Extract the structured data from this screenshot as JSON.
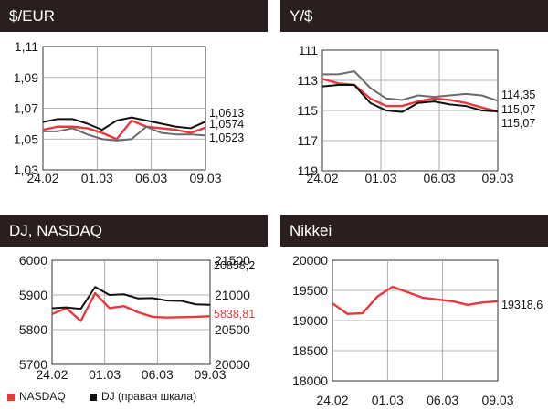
{
  "colors": {
    "red": "#e8383d",
    "black": "#111111",
    "gray": "#6b6b6b",
    "header_bg": "#2a1e1e"
  },
  "chart_data": [
    {
      "title": "$/EUR",
      "type": "line",
      "x_ticks": [
        "24.02",
        "01.03",
        "06.03",
        "09.03"
      ],
      "y_ticks": [
        "1,11",
        "1,09",
        "1,07",
        "1,05",
        "1,03"
      ],
      "ylim": [
        1.03,
        1.11
      ],
      "grid": true,
      "series": [
        {
          "color": "red",
          "x": [
            0,
            1,
            2,
            3,
            4,
            5,
            6,
            7,
            8,
            9,
            10,
            11
          ],
          "values": [
            1.056,
            1.058,
            1.058,
            1.057,
            1.054,
            1.05,
            1.062,
            1.058,
            1.057,
            1.056,
            1.054,
            1.0574
          ]
        },
        {
          "color": "black",
          "x": [
            0,
            1,
            2,
            3,
            4,
            5,
            6,
            7,
            8,
            9,
            10,
            11
          ],
          "values": [
            1.061,
            1.063,
            1.063,
            1.06,
            1.056,
            1.062,
            1.064,
            1.062,
            1.06,
            1.058,
            1.057,
            1.0613
          ]
        },
        {
          "color": "gray",
          "x": [
            0,
            1,
            2,
            3,
            4,
            5,
            6,
            7,
            8,
            9,
            10,
            11
          ],
          "values": [
            1.055,
            1.055,
            1.057,
            1.053,
            1.05,
            1.049,
            1.05,
            1.058,
            1.054,
            1.053,
            1.053,
            1.0523
          ]
        }
      ],
      "end_labels": [
        {
          "text": "1,0613",
          "color": "black"
        },
        {
          "text": "1,0574",
          "color": "black"
        },
        {
          "text": "1,0523",
          "color": "black"
        }
      ]
    },
    {
      "title": "Y/$",
      "type": "line",
      "x_ticks": [
        "24.02",
        "01.03",
        "06.03",
        "09.03"
      ],
      "y_ticks": [
        "111",
        "113",
        "115",
        "117",
        "119"
      ],
      "ylim": [
        111,
        119
      ],
      "y_inverted": true,
      "grid": true,
      "series": [
        {
          "color": "gray",
          "x": [
            0,
            1,
            2,
            3,
            4,
            5,
            6,
            7,
            8,
            9,
            10,
            11
          ],
          "values": [
            112.6,
            112.6,
            112.4,
            113.5,
            114.2,
            114.3,
            114.0,
            114.1,
            114.0,
            113.9,
            114.0,
            114.35
          ]
        },
        {
          "color": "red",
          "x": [
            0,
            1,
            2,
            3,
            4,
            5,
            6,
            7,
            8,
            9,
            10,
            11
          ],
          "values": [
            112.9,
            113.2,
            113.3,
            114.2,
            114.7,
            114.7,
            114.4,
            114.2,
            114.3,
            114.5,
            114.8,
            115.07
          ]
        },
        {
          "color": "black",
          "x": [
            0,
            1,
            2,
            3,
            4,
            5,
            6,
            7,
            8,
            9,
            10,
            11
          ],
          "values": [
            113.4,
            113.3,
            113.3,
            114.5,
            115.0,
            115.1,
            114.5,
            114.4,
            114.6,
            114.7,
            115.0,
            115.07
          ]
        }
      ],
      "end_labels": [
        {
          "text": "114,35",
          "color": "black"
        },
        {
          "text": "115,07",
          "color": "black"
        },
        {
          "text": "115,07",
          "color": "black"
        }
      ]
    },
    {
      "title": "DJ, NASDAQ",
      "type": "line",
      "x_ticks": [
        "24.02",
        "01.03",
        "06.03",
        "09.03"
      ],
      "y_ticks_left": [
        "6000",
        "5900",
        "5800",
        "5700"
      ],
      "ylim_left": [
        5700,
        6000
      ],
      "y_ticks_right": [
        "21500",
        "21000",
        "20500",
        "20000"
      ],
      "ylim_right": [
        20000,
        21500
      ],
      "grid": true,
      "series": [
        {
          "name": "NASDAQ",
          "color": "red",
          "axis": "left",
          "x": [
            0,
            1,
            2,
            3,
            4,
            5,
            6,
            7,
            8,
            9,
            10,
            11
          ],
          "values": [
            5845,
            5862,
            5825,
            5905,
            5862,
            5868,
            5850,
            5837,
            5835,
            5836,
            5837,
            5838.81
          ]
        },
        {
          "name": "DJ (правая шкала)",
          "color": "black",
          "axis": "right",
          "x": [
            0,
            1,
            2,
            3,
            4,
            5,
            6,
            7,
            8,
            9,
            10,
            11
          ],
          "values": [
            20810,
            20820,
            20800,
            21115,
            21000,
            21010,
            20950,
            20955,
            20920,
            20915,
            20865,
            20858.2
          ]
        }
      ],
      "end_labels": [
        {
          "text": "20858,2",
          "color": "black"
        },
        {
          "text": "5838,81",
          "color": "red"
        }
      ]
    },
    {
      "title": "Nikkei",
      "type": "line",
      "x_ticks": [
        "24.02",
        "01.03",
        "06.03",
        "09.03"
      ],
      "y_ticks": [
        "20000",
        "19500",
        "19000",
        "18500",
        "18000"
      ],
      "ylim": [
        18000,
        20000
      ],
      "grid": true,
      "series": [
        {
          "color": "red",
          "x": [
            0,
            1,
            2,
            3,
            4,
            5,
            6,
            7,
            8,
            9,
            10,
            11
          ],
          "values": [
            19285,
            19110,
            19120,
            19400,
            19560,
            19470,
            19380,
            19350,
            19320,
            19260,
            19300,
            19318.6
          ]
        }
      ],
      "end_labels": [
        {
          "text": "19318,6",
          "color": "black"
        }
      ]
    }
  ],
  "legend": [
    {
      "label": "NASDAQ",
      "color": "red"
    },
    {
      "label": "DJ (правая шкала)",
      "color": "black"
    }
  ]
}
